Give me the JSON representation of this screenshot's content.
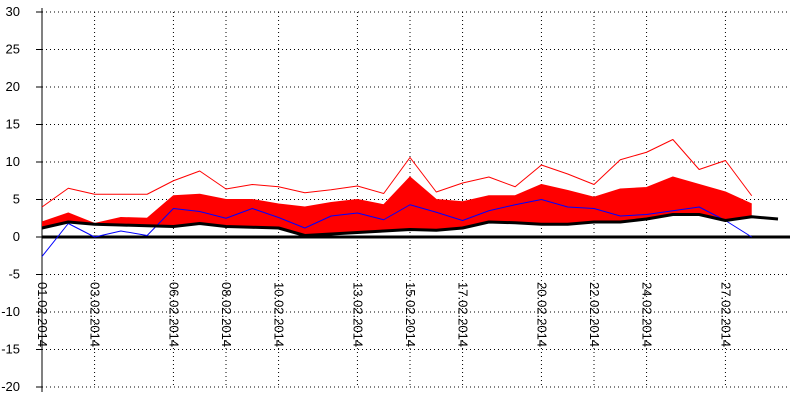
{
  "chart_data": {
    "type": "line",
    "x": [
      "01.02.2014",
      "02.02.2014",
      "03.02.2014",
      "04.02.2014",
      "05.02.2014",
      "06.02.2014",
      "07.02.2014",
      "08.02.2014",
      "09.02.2014",
      "10.02.2014",
      "11.02.2014",
      "12.02.2014",
      "13.02.2014",
      "14.02.2014",
      "15.02.2014",
      "16.02.2014",
      "17.02.2014",
      "18.02.2014",
      "19.02.2014",
      "20.02.2014",
      "21.02.2014",
      "22.02.2014",
      "23.02.2014",
      "24.02.2014",
      "25.02.2014",
      "26.02.2014",
      "27.02.2014",
      "28.02.2014",
      "01.03.2014"
    ],
    "xlim": [
      "01.02.2014",
      "01.03.2014"
    ],
    "xticks": [
      "01.02.2014",
      "03.02.2014",
      "06.02.2014",
      "08.02.2014",
      "10.02.2014",
      "13.02.2014",
      "15.02.2014",
      "17.02.2014",
      "20.02.2014",
      "22.02.2014",
      "24.02.2014",
      "27.02.2014"
    ],
    "ylim": [
      -20,
      30
    ],
    "yticks": [
      -20,
      -15,
      -10,
      -5,
      0,
      5,
      10,
      15,
      20,
      25,
      30
    ],
    "grid": true,
    "series": [
      {
        "color": "#ff0000",
        "fill": "to-next",
        "width": 1,
        "values": [
          2,
          3.2,
          1.8,
          2.6,
          2.5,
          5.5,
          5.7,
          5,
          5,
          4.4,
          4,
          4.6,
          5,
          4.3,
          8,
          5,
          4.7,
          5.5,
          5.5,
          7,
          6.2,
          5.3,
          6.4,
          6.6,
          8,
          7,
          6,
          4.4,
          null
        ]
      },
      {
        "color": "#000000",
        "width": 3,
        "values": [
          1.2,
          2,
          1.7,
          1.6,
          1.5,
          1.4,
          1.8,
          1.4,
          1.3,
          1.2,
          0.2,
          0.4,
          0.6,
          0.8,
          1,
          0.9,
          1.2,
          2,
          1.9,
          1.7,
          1.7,
          2,
          2,
          2.4,
          3,
          3,
          2.2,
          2.7,
          2.4
        ]
      },
      {
        "color": "#ff0000",
        "width": 1,
        "values": [
          4,
          6.5,
          5.7,
          5.7,
          5.7,
          7.5,
          8.8,
          6.4,
          7,
          6.7,
          5.9,
          6.3,
          6.8,
          5.8,
          10.6,
          6,
          7.2,
          8,
          6.7,
          9.6,
          8.4,
          7,
          10.3,
          11.3,
          13,
          9,
          10.2,
          5.5,
          null
        ]
      },
      {
        "color": "#0000ff",
        "width": 1,
        "values": [
          -2.6,
          1.8,
          0,
          0.8,
          0.2,
          3.8,
          3.4,
          2.5,
          3.8,
          2.6,
          1.2,
          2.8,
          3.2,
          2.3,
          4.3,
          3.3,
          2.2,
          3.5,
          4.3,
          5,
          4,
          3.8,
          2.8,
          3,
          3.5,
          4,
          2.2,
          0,
          null
        ]
      }
    ]
  }
}
